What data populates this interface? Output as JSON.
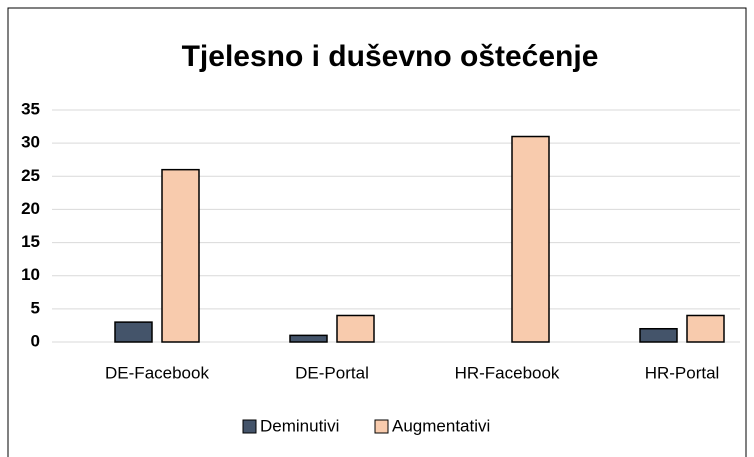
{
  "chart_data": {
    "type": "bar",
    "title": "Tjelesno i duševno oštećenje",
    "categories": [
      "DE-Facebook",
      "DE-Portal",
      "HR-Facebook",
      "HR-Portal"
    ],
    "series": [
      {
        "name": "Deminutivi",
        "color": "#44546a",
        "values": [
          3,
          1,
          0,
          2
        ]
      },
      {
        "name": "Augmentativi",
        "color": "#f8cbad",
        "values": [
          26,
          4,
          31,
          4
        ]
      }
    ],
    "ylim": [
      0,
      35
    ],
    "yticks": [
      0,
      5,
      10,
      15,
      20,
      25,
      30,
      35
    ],
    "grid": true,
    "legend": "bottom"
  }
}
